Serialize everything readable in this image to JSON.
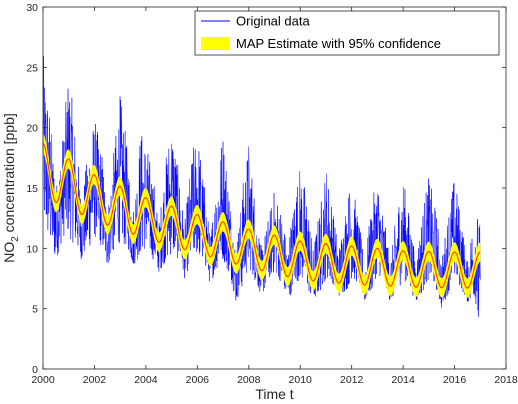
{
  "chart_data": {
    "type": "line",
    "title": "",
    "xlabel": "Time t",
    "ylabel": {
      "prefix": "NO",
      "subscript": "2",
      "suffix": " concentration [ppb]"
    },
    "xlim": [
      2000,
      2018
    ],
    "ylim": [
      0,
      30
    ],
    "xticks": [
      2000,
      2002,
      2004,
      2006,
      2008,
      2010,
      2012,
      2014,
      2016,
      2018
    ],
    "yticks": [
      0,
      5,
      10,
      15,
      20,
      25,
      30
    ],
    "grid": false,
    "legend_position": "top-right",
    "legend": {
      "entries": [
        "Original data",
        "MAP Estimate with 95% confidence"
      ]
    },
    "series": [
      {
        "name": "Original data",
        "style": "noisy-line",
        "color": "#0000ff",
        "x": [
          2000.0,
          2000.3,
          2000.5,
          2000.8,
          2001.0,
          2001.3,
          2001.5,
          2001.8,
          2002.0,
          2002.3,
          2002.5,
          2002.8,
          2003.0,
          2003.3,
          2003.5,
          2003.8,
          2004.0,
          2004.3,
          2004.5,
          2004.8,
          2005.0,
          2005.3,
          2005.5,
          2005.8,
          2006.0,
          2006.3,
          2006.5,
          2006.8,
          2007.0,
          2007.3,
          2007.5,
          2007.8,
          2008.0,
          2008.3,
          2008.5,
          2008.8,
          2009.0,
          2009.3,
          2009.5,
          2009.8,
          2010.0,
          2010.3,
          2010.5,
          2010.8,
          2011.0,
          2011.3,
          2011.5,
          2011.8,
          2012.0,
          2012.3,
          2012.5,
          2012.8,
          2013.0,
          2013.3,
          2013.5,
          2013.8,
          2014.0,
          2014.3,
          2014.5,
          2014.8,
          2015.0,
          2015.3,
          2015.5,
          2015.8,
          2016.0,
          2016.3,
          2016.5,
          2016.8,
          2017.0
        ],
        "upper": [
          26.5,
          21,
          15,
          20,
          25,
          19,
          14,
          19,
          21,
          18,
          13,
          19,
          23,
          18,
          13,
          20,
          19,
          16,
          12,
          18,
          21,
          16,
          12,
          18,
          20,
          15,
          11,
          17,
          20,
          14,
          10,
          16,
          19,
          13,
          10,
          13,
          15,
          13,
          10,
          15,
          17,
          14,
          10,
          14,
          17,
          13,
          10,
          14,
          16,
          12,
          9,
          14,
          16,
          12,
          9,
          14,
          16,
          12,
          9,
          14,
          16,
          13,
          9,
          14,
          16,
          12,
          9,
          14,
          12
        ],
        "lower": [
          12,
          10,
          9,
          11,
          11,
          10,
          9,
          10,
          11,
          10,
          8.5,
          10,
          10.5,
          10,
          8.5,
          9.5,
          10,
          9,
          8,
          9,
          9.5,
          9,
          7.5,
          9,
          9.5,
          8.5,
          7,
          8.5,
          9,
          7.5,
          5.5,
          7,
          8.5,
          7,
          6,
          7.5,
          8,
          7,
          5.5,
          7,
          7.5,
          6.5,
          5.5,
          6.5,
          7.5,
          7,
          6,
          6.5,
          7.5,
          7,
          5.5,
          6.5,
          8,
          7,
          5.5,
          6.5,
          7.5,
          6.5,
          5.5,
          6.5,
          7.5,
          6.5,
          5,
          6.5,
          7.5,
          6.5,
          5.5,
          6,
          1.5
        ]
      },
      {
        "name": "MAP Estimate with 95% confidence",
        "style": "estimate-band",
        "line_color": "#ff4500",
        "band_color": "#ffff00",
        "trend_x": [
          2000,
          2002,
          2004,
          2006,
          2008,
          2010,
          2012,
          2014,
          2016,
          2017
        ],
        "trend_mean": [
          16.5,
          14.2,
          12.5,
          11.2,
          10.0,
          9.0,
          8.6,
          8.3,
          8.2,
          8.2
        ],
        "trend_amplitude": [
          2.2,
          1.9,
          1.7,
          1.6,
          1.6,
          1.6,
          1.6,
          1.5,
          1.5,
          1.5
        ],
        "band_halfwidth": 0.8
      }
    ]
  }
}
